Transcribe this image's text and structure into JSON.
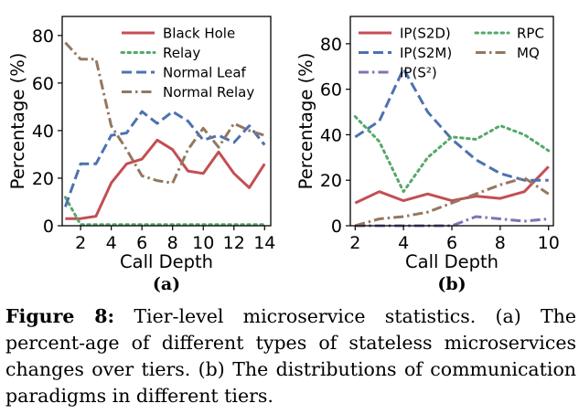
{
  "chart_data": [
    {
      "type": "line",
      "panel_label": "(a)",
      "xlabel": "Call Depth",
      "ylabel": "Percentage (%)",
      "xlim": [
        0.8,
        14.4
      ],
      "ylim": [
        0,
        88
      ],
      "xticks": [
        2,
        4,
        6,
        8,
        10,
        12,
        14
      ],
      "yticks": [
        0,
        20,
        40,
        60,
        80
      ],
      "legend_position": "top-right",
      "grid": false,
      "series": [
        {
          "name": "Black Hole",
          "style": "solid",
          "color": "#c44e52",
          "x": [
            1,
            2,
            3,
            4,
            5,
            6,
            7,
            8,
            9,
            10,
            11,
            12,
            13,
            14
          ],
          "y": [
            3,
            3,
            4,
            18,
            26,
            28,
            36,
            32,
            23,
            22,
            31,
            22,
            16,
            26
          ]
        },
        {
          "name": "Relay",
          "style": "dotted",
          "color": "#55a868",
          "x": [
            1,
            2,
            3,
            4,
            5,
            6,
            7,
            8,
            9,
            10,
            11,
            12,
            13,
            14
          ],
          "y": [
            12,
            0.5,
            0.5,
            0.5,
            0.5,
            0.5,
            0.5,
            0.5,
            0.5,
            0.5,
            0.5,
            0.5,
            0.5,
            0.5
          ]
        },
        {
          "name": "Normal Leaf",
          "style": "dashed",
          "color": "#4c72b0",
          "x": [
            1,
            2,
            3,
            4,
            5,
            6,
            7,
            8,
            9,
            10,
            11,
            12,
            13,
            14
          ],
          "y": [
            8,
            26,
            26,
            38,
            39,
            48,
            43,
            48,
            44,
            36,
            38,
            35,
            42,
            34
          ]
        },
        {
          "name": "Normal Relay",
          "style": "dashdot",
          "color": "#937860",
          "x": [
            1,
            2,
            3,
            4,
            5,
            6,
            7,
            8,
            9,
            10,
            11,
            12,
            13,
            14
          ],
          "y": [
            77,
            70,
            70,
            42,
            32,
            21,
            19,
            18,
            32,
            41,
            33,
            43,
            40,
            38
          ]
        }
      ]
    },
    {
      "type": "line",
      "panel_label": "(b)",
      "xlabel": "Call Depth",
      "ylabel": "Percentage (%)",
      "xlim": [
        1.8,
        10.2
      ],
      "ylim": [
        0,
        92
      ],
      "xticks": [
        2,
        4,
        6,
        8,
        10
      ],
      "yticks": [
        0,
        20,
        40,
        60,
        80
      ],
      "legend_position": "top",
      "grid": false,
      "series": [
        {
          "name": "IP(S2D)",
          "style": "solid",
          "color": "#c44e52",
          "x": [
            2,
            3,
            4,
            5,
            6,
            7,
            8,
            9,
            10
          ],
          "y": [
            10,
            15,
            11,
            14,
            11,
            13,
            12,
            15,
            26
          ]
        },
        {
          "name": "IP(S2M)",
          "style": "dashed",
          "color": "#4c72b0",
          "x": [
            2,
            3,
            4,
            5,
            6,
            7,
            8,
            9,
            10
          ],
          "y": [
            39,
            46,
            69,
            50,
            38,
            29,
            23,
            20,
            20
          ]
        },
        {
          "name": "IP(S²)",
          "style": "dashdot",
          "color": "#8172b2",
          "x": [
            2,
            3,
            4,
            5,
            6,
            7,
            8,
            9,
            10
          ],
          "y": [
            0,
            0,
            0,
            0,
            0,
            4,
            3,
            2,
            3
          ]
        },
        {
          "name": "RPC",
          "style": "dotted",
          "color": "#55a868",
          "x": [
            2,
            3,
            4,
            5,
            6,
            7,
            8,
            9,
            10
          ],
          "y": [
            48,
            37,
            15,
            30,
            39,
            38,
            44,
            40,
            33
          ]
        },
        {
          "name": "MQ",
          "style": "dashdot",
          "color": "#937860",
          "x": [
            2,
            3,
            4,
            5,
            6,
            7,
            8,
            9,
            10
          ],
          "y": [
            0,
            3,
            4,
            6,
            10,
            14,
            18,
            21,
            14
          ]
        }
      ]
    }
  ],
  "caption": {
    "lead": "Figure 8:",
    "text": " Tier-level microservice statistics. (a) The percent-age of different types of stateless microservices changes over tiers. (b) The distributions of communication paradigms in different tiers."
  }
}
